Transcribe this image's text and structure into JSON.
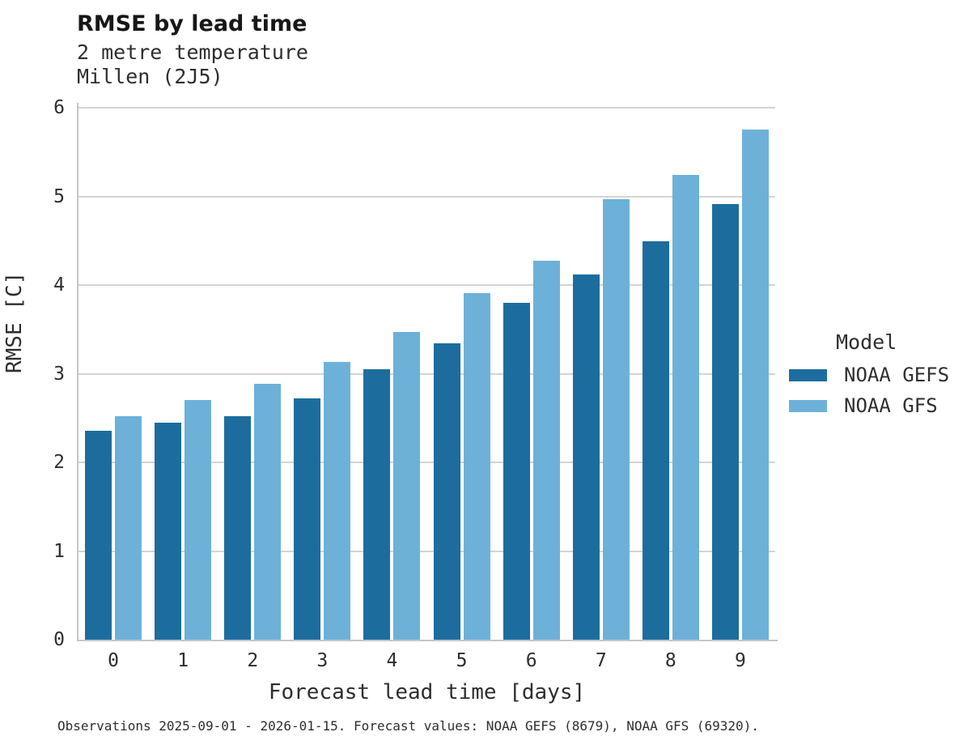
{
  "header": {
    "title": "RMSE by lead time",
    "subtitle_line1": "2 metre temperature",
    "subtitle_line2": "Millen (2J5)"
  },
  "legend": {
    "title": "Model",
    "items": [
      {
        "label": "NOAA GEFS",
        "color": "#1c6d9e"
      },
      {
        "label": "NOAA GFS",
        "color": "#6db1d9"
      }
    ]
  },
  "footer": {
    "note": "Observations 2025-09-01 - 2026-01-15. Forecast values: NOAA GEFS (8679), NOAA GFS (69320)."
  },
  "chart_data": {
    "type": "bar",
    "title": "RMSE by lead time",
    "subtitle": "2 metre temperature — Millen (2J5)",
    "xlabel": "Forecast lead time [days]",
    "ylabel": "RMSE [C]",
    "categories": [
      "0",
      "1",
      "2",
      "3",
      "4",
      "5",
      "6",
      "7",
      "8",
      "9"
    ],
    "series": [
      {
        "name": "NOAA GEFS",
        "color": "#1c6d9e",
        "values": [
          2.36,
          2.45,
          2.52,
          2.72,
          3.05,
          3.34,
          3.8,
          4.12,
          4.49,
          4.91
        ]
      },
      {
        "name": "NOAA GFS",
        "color": "#6db1d9",
        "values": [
          2.52,
          2.7,
          2.89,
          3.13,
          3.47,
          3.91,
          4.27,
          4.97,
          5.24,
          5.75
        ]
      }
    ],
    "ylim": [
      0,
      6
    ],
    "yticks": [
      0,
      1,
      2,
      3,
      4,
      5,
      6
    ],
    "grid": true,
    "legend_title": "Model",
    "legend_position": "right"
  }
}
